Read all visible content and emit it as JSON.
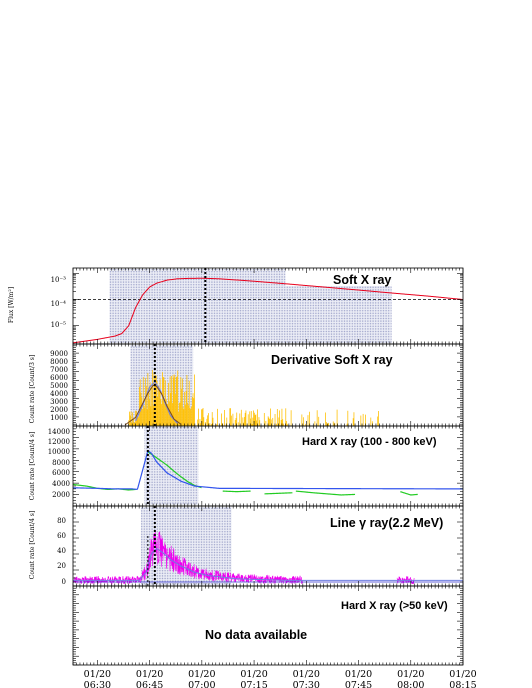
{
  "time_axis": {
    "ticks": [
      {
        "t": 0,
        "date": "01/20",
        "time": "06:30"
      },
      {
        "t": 15,
        "date": "01/20",
        "time": "06:45"
      },
      {
        "t": 30,
        "date": "01/20",
        "time": "07:00"
      },
      {
        "t": 45,
        "date": "01/20",
        "time": "07:15"
      },
      {
        "t": 60,
        "date": "01/20",
        "time": "07:30"
      },
      {
        "t": 75,
        "date": "01/20",
        "time": "07:45"
      },
      {
        "t": 90,
        "date": "01/20",
        "time": "08:00"
      },
      {
        "t": 105,
        "date": "01/20",
        "time": "08:15"
      }
    ],
    "range_minutes_from_0630": [
      -7,
      105
    ]
  },
  "colors": {
    "soft_xray_line": "#e8001c",
    "derivative_bars": "#ffc20a",
    "fit_line": "#6f7fe0",
    "hard_xray_green": "#22cc22",
    "hard_xray_blue": "#3355ee",
    "gamma_line": "#ee00ee",
    "shade_dots": "#9aa0c8",
    "peak_marker": "#000000"
  },
  "panels": [
    {
      "id": "soft",
      "title": "Soft X ray",
      "ylabel": "Flux [W/m²]",
      "ytick_labels": [
        "10⁻³",
        "10⁻⁴",
        "10⁻⁵"
      ],
      "chart_data": {
        "type": "line",
        "ylog": true,
        "ylim": [
          2e-06,
          0.0016
        ],
        "x_minutes": [
          -7,
          0,
          5,
          7,
          9,
          11,
          13,
          15,
          17,
          20,
          23,
          26,
          30,
          35,
          45,
          55,
          65,
          75,
          85,
          95,
          105
        ],
        "y": [
          2.2e-06,
          3e-06,
          4e-06,
          5e-06,
          1e-05,
          5e-05,
          0.00015,
          0.0003,
          0.00042,
          0.00055,
          0.00062,
          0.00064,
          0.00065,
          0.00062,
          0.0005,
          0.00039,
          0.0003,
          0.00023,
          0.000175,
          0.000135,
          0.0001
        ],
        "dashed_level": 0.0001,
        "peak_marker_minute": 31,
        "shaded_interval": [
          3.5,
          84.5
        ],
        "legend_box_interval": [
          54,
          84.5
        ]
      }
    },
    {
      "id": "deriv",
      "title": "Derivative Soft X ray",
      "ylabel": "Count rate [Count/3 s]",
      "ytick_labels": [
        "9000",
        "8000",
        "7000",
        "6000",
        "5000",
        "4000",
        "3000",
        "2000",
        "1000"
      ],
      "chart_data": {
        "type": "bar",
        "ylim": [
          0,
          9500
        ],
        "fit_x": [
          8,
          11,
          13,
          14.5,
          16,
          17,
          18.5,
          20,
          22,
          24
        ],
        "fit_y": [
          150,
          1000,
          2600,
          3800,
          4700,
          4600,
          3700,
          2300,
          800,
          200
        ],
        "fit2_x": [
          11,
          13,
          15,
          16.5,
          18,
          19.5,
          21,
          23
        ],
        "fit2_y": [
          600,
          2400,
          4500,
          5100,
          4200,
          2600,
          1200,
          300
        ],
        "peak_marker_minute": 16.5,
        "shaded_interval": [
          9.5,
          27.5
        ]
      }
    },
    {
      "id": "hard",
      "title": "Hard X ray (100 - 800 keV)",
      "ylabel": "Count rate [Count/4 s]",
      "ytick_labels": [
        "14000",
        "12000",
        "10000",
        "8000",
        "6000",
        "4000",
        "2000"
      ],
      "chart_data": {
        "type": "line",
        "ylim": [
          0,
          14500
        ],
        "fit_x": [
          -7,
          0,
          5,
          10,
          11.5,
          13,
          14.5,
          15.5,
          17,
          20,
          24,
          28,
          35,
          105
        ],
        "fit_y": [
          3300,
          3200,
          3100,
          3100,
          3000,
          6500,
          10000,
          9600,
          8000,
          6000,
          4500,
          3600,
          3200,
          3100
        ],
        "data_segments": [
          {
            "x": [
              -7,
              -3,
              0,
              3,
              6,
              9,
              11
            ],
            "y": [
              3900,
              3600,
              3200,
              3000,
              3100,
              2900,
              3000
            ]
          },
          {
            "x": [
              14.5,
              16,
              18,
              20,
              22,
              24,
              26,
              28,
              30
            ],
            "y": [
              9800,
              9200,
              8300,
              7400,
              6300,
              5300,
              4400,
              3700,
              3300
            ]
          },
          {
            "x": [
              36,
              40,
              44
            ],
            "y": [
              2700,
              2600,
              2700
            ]
          },
          {
            "x": [
              48,
              52,
              56
            ],
            "y": [
              2200,
              2300,
              2400
            ]
          },
          {
            "x": [
              57,
              62,
              66,
              70,
              74
            ],
            "y": [
              2700,
              2400,
              2200,
              2000,
              2100
            ]
          },
          {
            "x": [
              87,
              90,
              92
            ],
            "y": [
              2600,
              2000,
              2100
            ]
          }
        ],
        "peak_marker_minute": 14.5,
        "shaded_interval": [
          13.5,
          29
        ]
      }
    },
    {
      "id": "gamma",
      "title": "Line γ ray(2.2 MeV)",
      "ylabel": "Count rate [Count/4 s]",
      "ytick_labels": [
        "80",
        "60",
        "40",
        "20",
        "0"
      ],
      "chart_data": {
        "type": "line",
        "ylim": [
          -5,
          95
        ],
        "fit_x": [
          -7,
          12,
          14,
          15.5,
          17,
          19,
          21,
          24,
          28,
          32,
          40,
          55,
          105
        ],
        "fit_y": [
          2,
          2,
          12,
          35,
          42,
          36,
          28,
          20,
          12,
          8,
          4,
          2,
          2
        ],
        "noise_segments": [
          [
            -7,
            59
          ],
          [
            86,
            91
          ]
        ],
        "peak_marker_minute": 16.5,
        "second_marker_minute": 14.5,
        "shaded_interval": [
          12.5,
          38.5
        ]
      }
    },
    {
      "id": "hxr50",
      "title": "Hard X ray (>50 keV)",
      "message": "No data available"
    }
  ]
}
